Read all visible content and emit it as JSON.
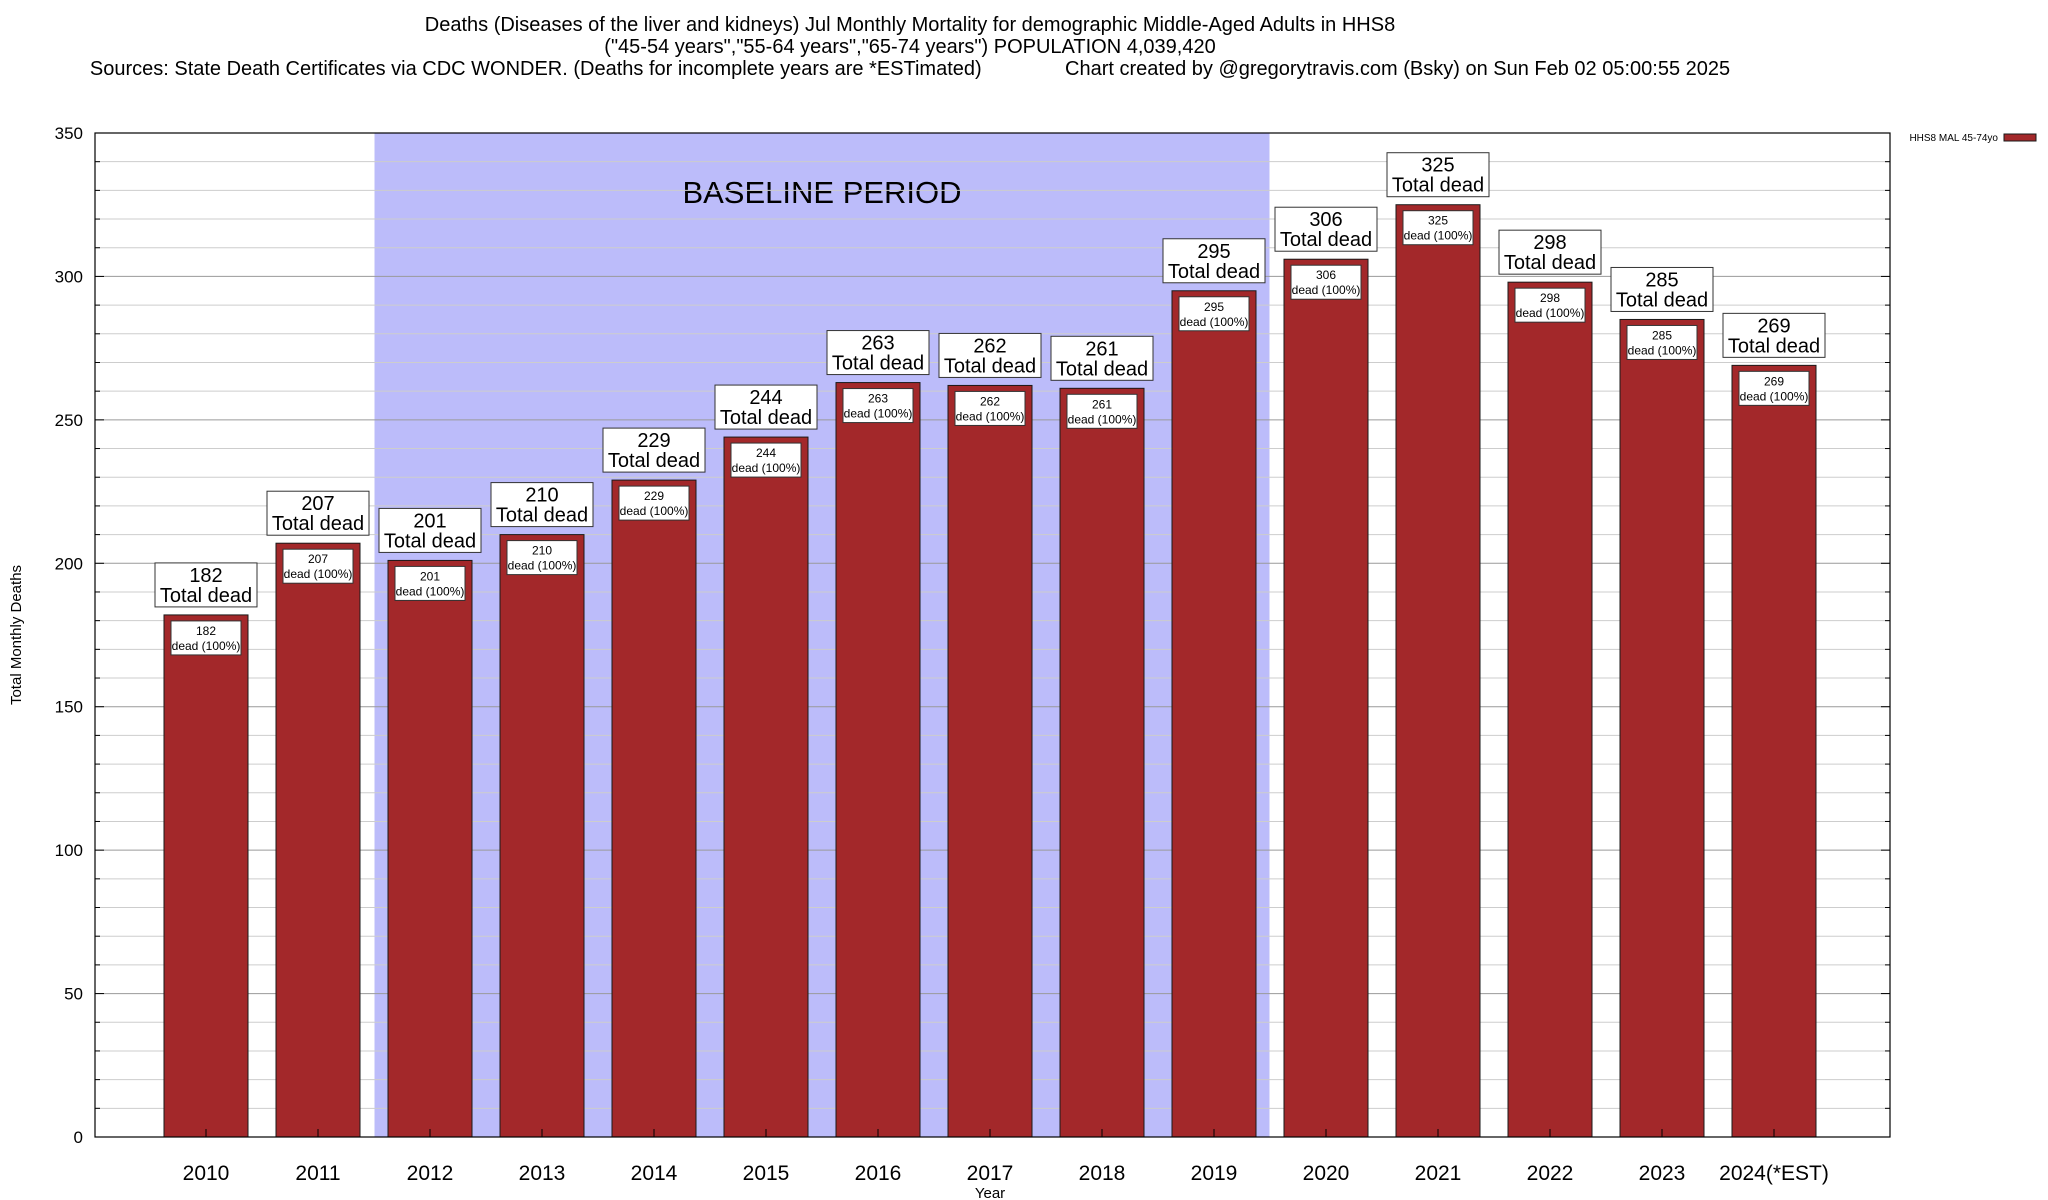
{
  "header": {
    "title_line1": "Deaths (Diseases of the liver and kidneys) Jul Monthly Mortality for demographic Middle-Aged Adults in HHS8",
    "title_line2": "(\"45-54 years\",\"55-64 years\",\"65-74 years\") POPULATION 4,039,420",
    "sources": "Sources: State Death Certificates via CDC WONDER. (Deaths for incomplete years are *ESTimated)",
    "credit": "Chart created by @gregorytravis.com (Bsky) on Sun Feb 02 05:00:55 2025"
  },
  "chart_data": {
    "type": "bar",
    "categories": [
      "2010",
      "2011",
      "2012",
      "2013",
      "2014",
      "2015",
      "2016",
      "2017",
      "2018",
      "2019",
      "2020",
      "2021",
      "2022",
      "2023",
      "2024(*EST)"
    ],
    "series": [
      {
        "name": "HHS8 MAL 45-74yo",
        "values": [
          182,
          207,
          201,
          210,
          229,
          244,
          263,
          262,
          261,
          295,
          306,
          325,
          298,
          285,
          269
        ],
        "color": "#a3282a"
      }
    ],
    "bar_label_suffix": "Total dead",
    "inner_label_suffix": "dead (100%)",
    "xlabel": "Year",
    "ylabel": "Total Monthly Deaths",
    "ylim": [
      0,
      350
    ],
    "yticks": [
      0,
      50,
      100,
      150,
      200,
      250,
      300,
      350
    ],
    "grid": true,
    "legend_position": "top-right",
    "baseline": {
      "label": "BASELINE PERIOD",
      "from": "2012",
      "to": "2019",
      "color": "#bcbcfa"
    }
  }
}
